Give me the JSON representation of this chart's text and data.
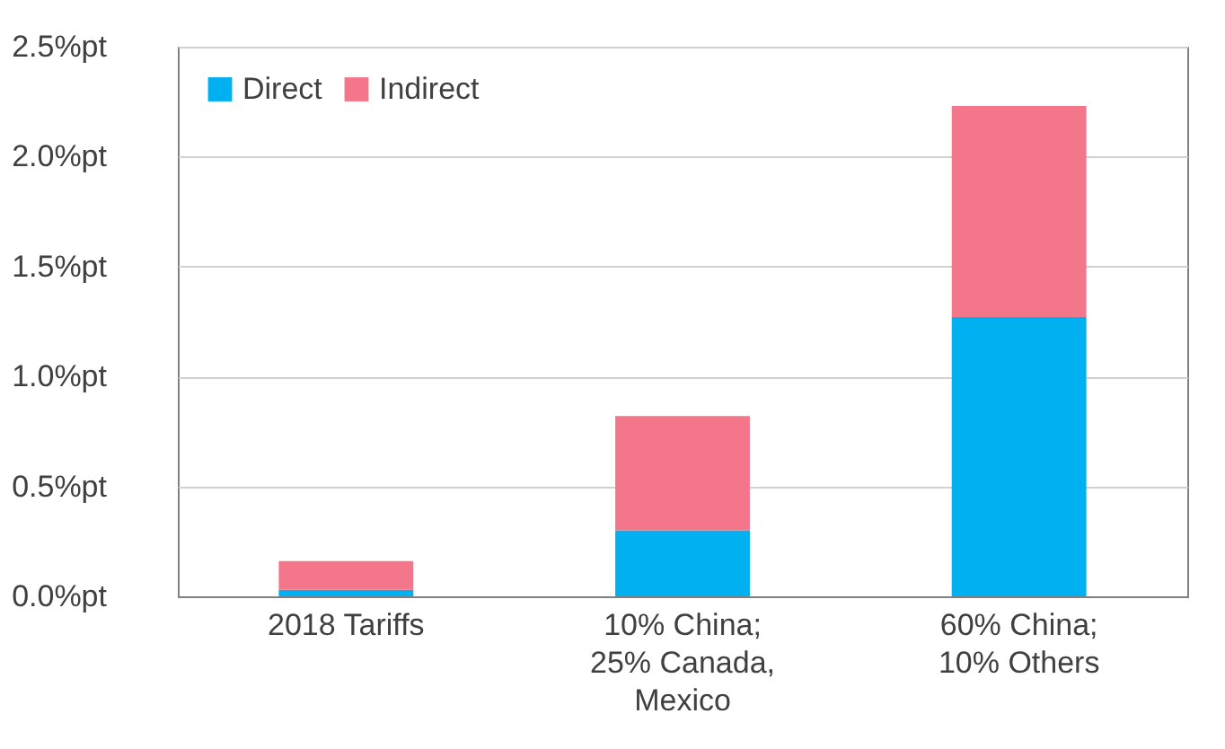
{
  "chart_data": {
    "type": "bar",
    "stacked": true,
    "categories": [
      "2018 Tariffs",
      "10% China; 25% Canada, Mexico",
      "60% China; 10% Others"
    ],
    "series": [
      {
        "name": "Direct",
        "color": "#00b0f0",
        "values": [
          0.03,
          0.3,
          1.27
        ]
      },
      {
        "name": "Indirect",
        "color": "#f4768a",
        "values": [
          0.13,
          0.52,
          0.96
        ]
      }
    ],
    "ylim": [
      0,
      2.5
    ],
    "yticks": [
      {
        "value": 0,
        "label": "0.0%pt"
      },
      {
        "value": 0.5,
        "label": "0.5%pt"
      },
      {
        "value": 1,
        "label": "1.0%pt"
      },
      {
        "value": 1.5,
        "label": "1.5%pt"
      },
      {
        "value": 2,
        "label": "2.0%pt"
      },
      {
        "value": 2.5,
        "label": "2.5%pt"
      }
    ],
    "grid": "y",
    "legend": "top left"
  }
}
